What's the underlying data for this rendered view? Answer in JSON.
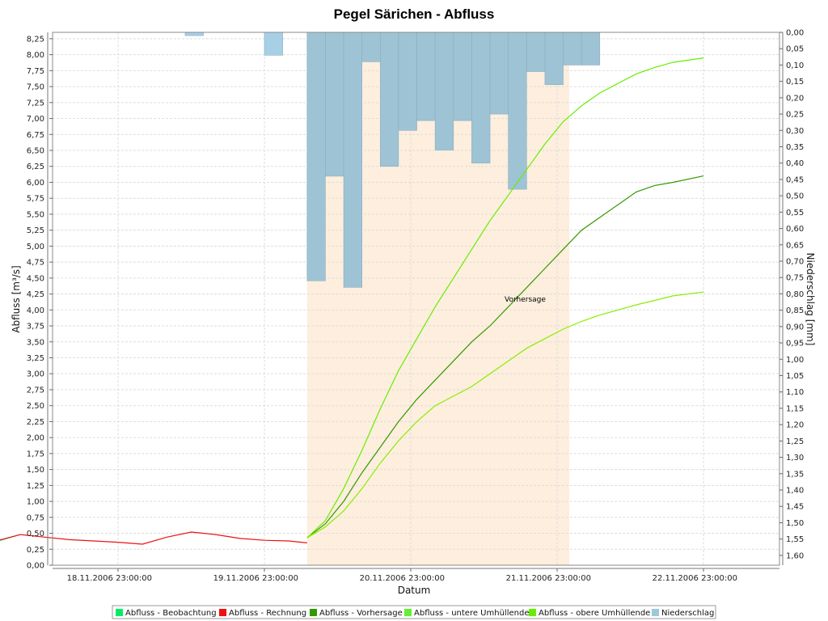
{
  "chart_data": {
    "type": "line",
    "title": "Pegel Särichen - Abfluss",
    "xlabel": "Datum",
    "ylabel": "Abfluss [m³/s]",
    "y2label": "Niederschlag [mm]",
    "ylim": [
      0,
      8.35
    ],
    "y2lim": [
      1.63,
      0.0
    ],
    "y2_inverted": true,
    "grid": true,
    "x_tick_labels": [
      "18.11.2006 23:00:00",
      "19.11.2006 23:00:00",
      "20.11.2006 23:00:00",
      "21.11.2006 23:00:00",
      "22.11.2006 23:00:00"
    ],
    "forecast_region": {
      "label": "Vorhersage",
      "start": "20.11.2006 06:00",
      "end": "22.11.2006 01:00",
      "color": "#fdeedd"
    },
    "colors": {
      "beobachtung": "#00ee66",
      "rechnung": "#ee1111",
      "vorhersage": "#339900",
      "untere": "#88ee00",
      "obere": "#66ee00",
      "niederschlag": "#9ec8dc"
    },
    "series": [
      {
        "name": "Abfluss - Beobachtung",
        "x": [
          "17.11.2006 23:00",
          "18.11.2006 03:00",
          "18.11.2006 07:00"
        ],
        "values": [
          0.21,
          0.37,
          0.48
        ]
      },
      {
        "name": "Abfluss - Rechnung",
        "x": [
          "18.11.2006 03:00",
          "18.11.2006 07:00",
          "18.11.2006 11:00",
          "18.11.2006 15:00",
          "18.11.2006 19:00",
          "18.11.2006 23:00",
          "19.11.2006 03:00",
          "19.11.2006 07:00",
          "19.11.2006 11:00",
          "19.11.2006 15:00",
          "19.11.2006 19:00",
          "19.11.2006 23:00",
          "20.11.2006 03:00",
          "20.11.2006 06:00"
        ],
        "values": [
          0.38,
          0.48,
          0.44,
          0.4,
          0.38,
          0.36,
          0.33,
          0.44,
          0.52,
          0.48,
          0.42,
          0.39,
          0.38,
          0.35
        ]
      },
      {
        "name": "Abfluss - Vorhersage",
        "x": [
          "20.11.2006 06:00",
          "20.11.2006 09:00",
          "20.11.2006 12:00",
          "20.11.2006 15:00",
          "20.11.2006 18:00",
          "20.11.2006 21:00",
          "21.11.2006 00:00",
          "21.11.2006 03:00",
          "21.11.2006 06:00",
          "21.11.2006 09:00",
          "21.11.2006 12:00",
          "21.11.2006 15:00",
          "21.11.2006 18:00",
          "21.11.2006 21:00",
          "22.11.2006 00:00",
          "22.11.2006 03:00",
          "22.11.2006 06:00",
          "22.11.2006 09:00",
          "22.11.2006 12:00",
          "22.11.2006 15:00",
          "22.11.2006 18:00",
          "22.11.2006 23:00"
        ],
        "values": [
          0.43,
          0.65,
          1.0,
          1.45,
          1.85,
          2.25,
          2.6,
          2.9,
          3.2,
          3.5,
          3.75,
          4.05,
          4.35,
          4.65,
          4.95,
          5.25,
          5.45,
          5.65,
          5.85,
          5.95,
          6.0,
          6.1
        ]
      },
      {
        "name": "Abfluss - untere Umhüllende",
        "x": [
          "20.11.2006 06:00",
          "20.11.2006 09:00",
          "20.11.2006 12:00",
          "20.11.2006 15:00",
          "20.11.2006 18:00",
          "20.11.2006 21:00",
          "21.11.2006 00:00",
          "21.11.2006 03:00",
          "21.11.2006 06:00",
          "21.11.2006 09:00",
          "21.11.2006 12:00",
          "21.11.2006 15:00",
          "21.11.2006 18:00",
          "21.11.2006 21:00",
          "22.11.2006 00:00",
          "22.11.2006 03:00",
          "22.11.2006 06:00",
          "22.11.2006 09:00",
          "22.11.2006 12:00",
          "22.11.2006 15:00",
          "22.11.2006 18:00",
          "22.11.2006 23:00"
        ],
        "values": [
          0.43,
          0.6,
          0.85,
          1.2,
          1.6,
          1.95,
          2.25,
          2.5,
          2.65,
          2.8,
          3.0,
          3.2,
          3.4,
          3.55,
          3.7,
          3.82,
          3.92,
          4.0,
          4.08,
          4.15,
          4.22,
          4.28
        ]
      },
      {
        "name": "Abfluss - obere Umhüllende",
        "x": [
          "20.11.2006 06:00",
          "20.11.2006 09:00",
          "20.11.2006 12:00",
          "20.11.2006 15:00",
          "20.11.2006 18:00",
          "20.11.2006 21:00",
          "21.11.2006 00:00",
          "21.11.2006 03:00",
          "21.11.2006 06:00",
          "21.11.2006 09:00",
          "21.11.2006 12:00",
          "21.11.2006 15:00",
          "21.11.2006 18:00",
          "21.11.2006 21:00",
          "22.11.2006 00:00",
          "22.11.2006 03:00",
          "22.11.2006 06:00",
          "22.11.2006 09:00",
          "22.11.2006 12:00",
          "22.11.2006 15:00",
          "22.11.2006 18:00",
          "22.11.2006 23:00"
        ],
        "values": [
          0.43,
          0.7,
          1.2,
          1.8,
          2.45,
          3.05,
          3.55,
          4.05,
          4.5,
          4.95,
          5.4,
          5.8,
          6.2,
          6.6,
          6.95,
          7.2,
          7.4,
          7.55,
          7.7,
          7.8,
          7.88,
          7.95
        ]
      },
      {
        "name": "Niederschlag",
        "x": [
          "19.11.2006 10:00",
          "19.11.2006 23:00",
          "20.11.2006 06:00",
          "20.11.2006 09:00",
          "20.11.2006 12:00",
          "20.11.2006 15:00",
          "20.11.2006 18:00",
          "20.11.2006 21:00",
          "21.11.2006 00:00",
          "21.11.2006 03:00",
          "21.11.2006 06:00",
          "21.11.2006 09:00",
          "21.11.2006 12:00",
          "21.11.2006 15:00",
          "21.11.2006 18:00",
          "21.11.2006 21:00",
          "22.11.2006 00:00",
          "22.11.2006 03:00"
        ],
        "values": [
          0.01,
          0.07,
          0.76,
          0.44,
          0.78,
          0.09,
          0.41,
          0.3,
          0.27,
          0.36,
          0.27,
          0.4,
          0.25,
          0.48,
          0.12,
          0.16,
          0.1,
          0.1
        ]
      }
    ]
  }
}
